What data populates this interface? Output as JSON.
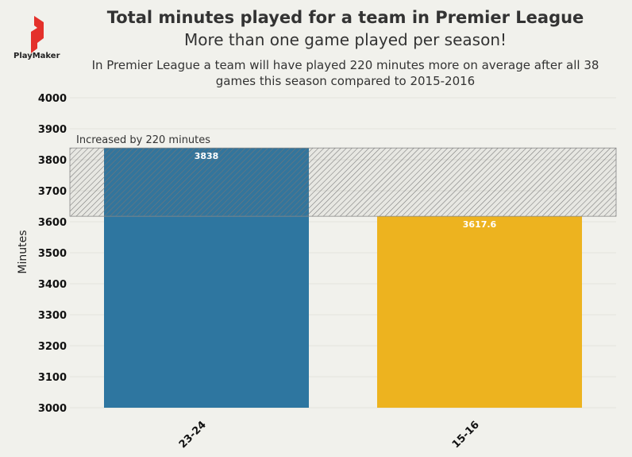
{
  "header": {
    "logo_text": "PlayMaker",
    "title": "Total minutes played for a team in Premier League",
    "subtitle": "More than one game played per season!",
    "description": "In Premier League a team will have played 220 minutes more on average after all 38 games this season compared to 2015-2016"
  },
  "colors": {
    "background": "#f1f1ec",
    "bar_23_24": "#2e76a0",
    "bar_15_16": "#edb31f",
    "logo": "#e4312b"
  },
  "chart_data": {
    "type": "bar",
    "categories": [
      "23-24",
      "15-16"
    ],
    "values": [
      3838,
      3617.6
    ],
    "data_labels": [
      "3838",
      "3617.6"
    ],
    "ylabel": "Minutes",
    "xlabel": "",
    "ylim": [
      3000,
      4000
    ],
    "yticks": [
      3000,
      3100,
      3200,
      3300,
      3400,
      3500,
      3600,
      3700,
      3800,
      3900,
      4000
    ],
    "grid": true,
    "annotation": {
      "text": "Increased by 220 minutes",
      "range": [
        3617.6,
        3838
      ],
      "style": "hatched band"
    }
  }
}
